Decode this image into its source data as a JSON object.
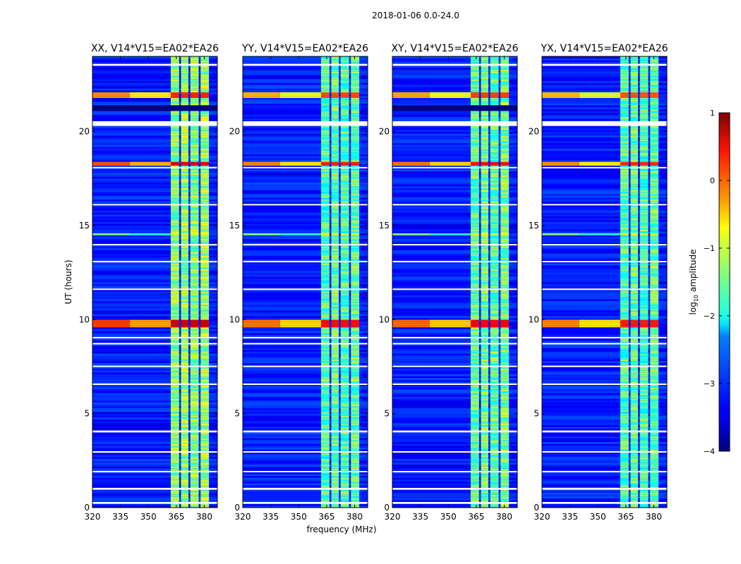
{
  "chart_data": {
    "type": "heatmap",
    "suptitle": "2018-01-06 0.0-24.0",
    "xlabel": "frequency (MHz)",
    "ylabel": "UT (hours)",
    "xlim": [
      320,
      387
    ],
    "ylim": [
      0,
      24
    ],
    "xticks": [
      "320",
      "335",
      "350",
      "365",
      "380"
    ],
    "xtick_values": [
      320,
      335,
      350,
      365,
      380
    ],
    "yticks": [
      "0",
      "5",
      "10",
      "15",
      "20"
    ],
    "ytick_values": [
      0,
      5,
      10,
      15,
      20
    ],
    "panels": [
      {
        "title": "XX, V14*V15=EA02*EA26",
        "band_level": -1.3,
        "rfi_strength": 1.0,
        "dark_block": true
      },
      {
        "title": "YY, V14*V15=EA02*EA26",
        "band_level": -1.6,
        "rfi_strength": 0.8,
        "dark_block": false
      },
      {
        "title": "XY, V14*V15=EA02*EA26",
        "band_level": -1.5,
        "rfi_strength": 0.85,
        "dark_block": true
      },
      {
        "title": "YX, V14*V15=EA02*EA26",
        "band_level": -1.6,
        "rfi_strength": 0.75,
        "dark_block": false
      }
    ],
    "bright_subbands_mhz": [
      [
        362,
        366.5
      ],
      [
        367.5,
        371.5
      ],
      [
        372.5,
        377
      ],
      [
        378,
        382.5
      ]
    ],
    "flagged_hours": [
      [
        23.5,
        23.6
      ],
      [
        20.3,
        20.55
      ],
      [
        18.05,
        18.12
      ],
      [
        16.1,
        16.15
      ],
      [
        13.95,
        14.02
      ],
      [
        13.05,
        13.12
      ],
      [
        11.6,
        11.65
      ],
      [
        9.0,
        9.08
      ],
      [
        8.68,
        8.76
      ],
      [
        7.5,
        7.55
      ],
      [
        6.55,
        6.6
      ],
      [
        4.0,
        4.1
      ],
      [
        2.95,
        3.0
      ],
      [
        1.9,
        1.95
      ],
      [
        0.95,
        1.05
      ],
      [
        0.2,
        0.3
      ]
    ],
    "dark_hours": [
      [
        21.1,
        21.4
      ]
    ],
    "rfi_hours": [
      {
        "center": 18.3,
        "width": 0.25,
        "level": 0.3
      },
      {
        "center": 9.8,
        "width": 0.4,
        "level": 0.4
      },
      {
        "center": 22.0,
        "width": 0.3,
        "level": 0.0
      },
      {
        "center": 14.6,
        "width": 0.1,
        "level": -1.2
      }
    ],
    "colorbar": {
      "label": "log10 amplitude",
      "label_main": "log",
      "label_sub": "10",
      "label_rest": " amplitude",
      "range": [
        -4,
        1
      ],
      "ticks": [
        "1",
        "0",
        "−1",
        "−2",
        "−3",
        "−4"
      ],
      "tick_values": [
        1,
        0,
        -1,
        -2,
        -3,
        -4
      ],
      "colormap": "jet"
    }
  }
}
